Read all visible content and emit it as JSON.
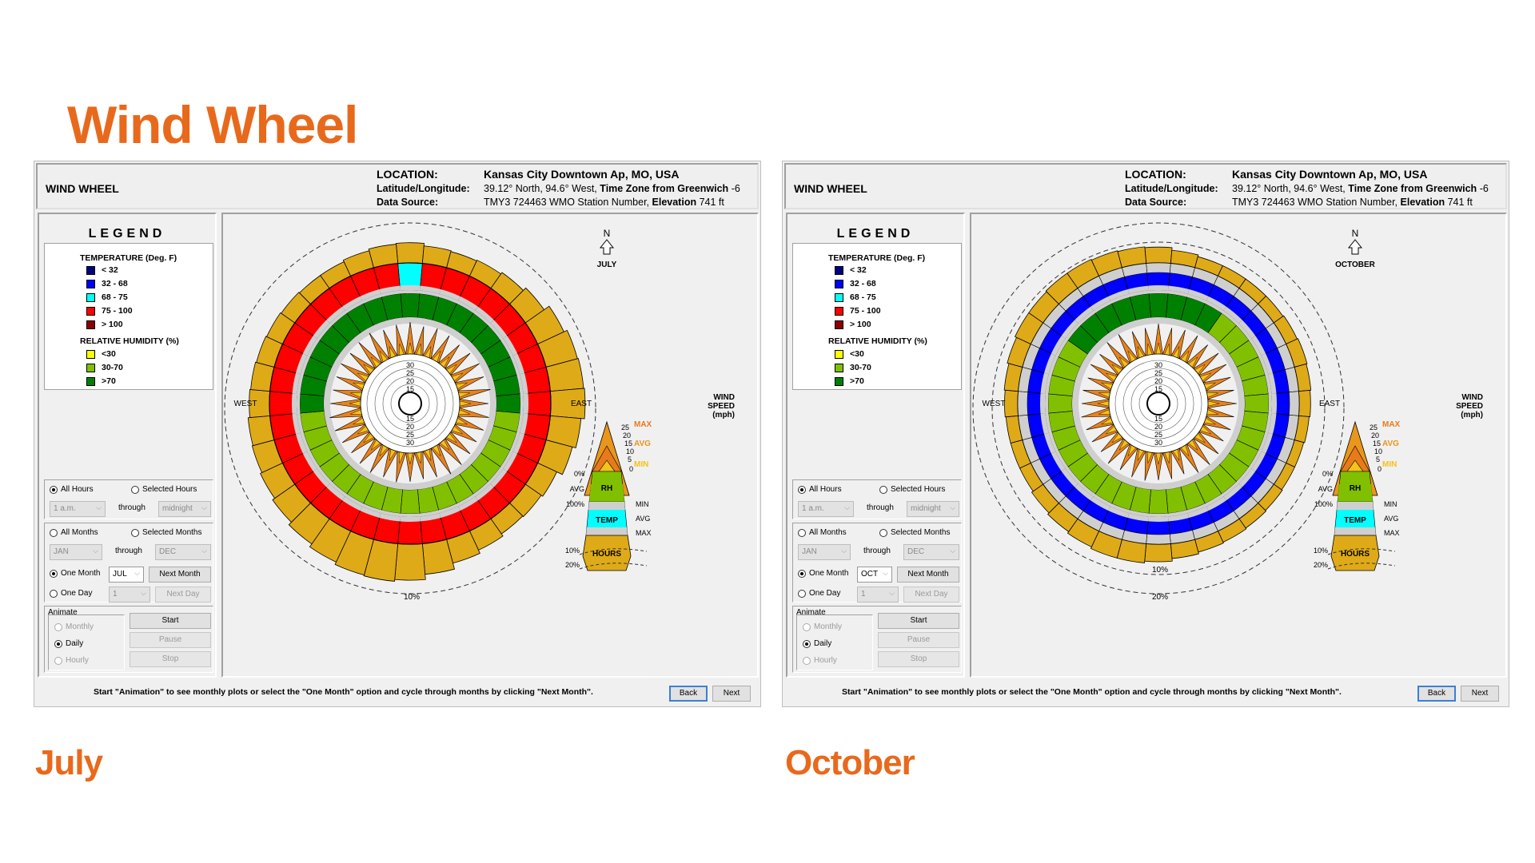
{
  "slide_title": "Wind Wheel",
  "windows": [
    {
      "caption": "July",
      "header": {
        "title": "WIND WHEEL",
        "location_key": "LOCATION:",
        "location_value": "Kansas City Downtown Ap, MO, USA",
        "latlon_key": "Latitude/Longitude:",
        "latlon_value": "39.12° North, 94.6° West,",
        "tz_label": "Time Zone from Greenwich",
        "tz_value": "-6",
        "source_key": "Data Source:",
        "source_value": "TMY3     724463 WMO Station Number,",
        "elev_label": "Elevation",
        "elev_value": "741 ft"
      },
      "month_label": "JULY",
      "selected_month": "JUL",
      "wheel_style": "july"
    },
    {
      "caption": "October",
      "header": {
        "title": "WIND WHEEL",
        "location_key": "LOCATION:",
        "location_value": "Kansas City Downtown Ap, MO, USA",
        "latlon_key": "Latitude/Longitude:",
        "latlon_value": "39.12° North, 94.6° West,",
        "tz_label": "Time Zone from Greenwich",
        "tz_value": "-6",
        "source_key": "Data Source:",
        "source_value": "TMY3     724463 WMO Station Number,",
        "elev_label": "Elevation",
        "elev_value": "741 ft"
      },
      "month_label": "OCTOBER",
      "selected_month": "OCT",
      "wheel_style": "october"
    }
  ],
  "legend": {
    "title": "LEGEND",
    "temp_heading": "TEMPERATURE (Deg. F)",
    "temp_items": [
      {
        "label": "< 32",
        "color": "#000080"
      },
      {
        "label": "32  -  68",
        "color": "#0000ff"
      },
      {
        "label": "68  -  75",
        "color": "#00ffff"
      },
      {
        "label": "75  -  100",
        "color": "#ff0000"
      },
      {
        "label": "> 100",
        "color": "#8b0000"
      }
    ],
    "rh_heading": "RELATIVE HUMIDITY (%)",
    "rh_items": [
      {
        "label": "<30",
        "color": "#ffff00"
      },
      {
        "label": "30-70",
        "color": "#80c000"
      },
      {
        "label": ">70",
        "color": "#008000"
      }
    ]
  },
  "controls": {
    "all_hours": "All Hours",
    "selected_hours": "Selected Hours",
    "hour_from": "1 a.m.",
    "through": "through",
    "hour_to": "midnight",
    "all_months": "All Months",
    "selected_months": "Selected Months",
    "month_from": "JAN",
    "month_to": "DEC",
    "one_month": "One Month",
    "next_month": "Next Month",
    "one_day": "One Day",
    "day_value": "1",
    "next_day": "Next Day",
    "animate": "Animate",
    "monthly": "Monthly",
    "daily": "Daily",
    "hourly": "Hourly",
    "start": "Start",
    "pause": "Pause",
    "stop": "Stop",
    "back": "Back",
    "next": "Next",
    "footer": "Start \"Animation\" to see monthly plots or select the \"One Month\" option and cycle through months by clicking \"Next Month\"."
  },
  "plot_labels": {
    "north": "N",
    "west": "WEST",
    "east": "EAST",
    "wind_speed": [
      "WIND",
      "SPEED",
      "(mph)"
    ],
    "ring_ticks": [
      "15",
      "20",
      "25",
      "30"
    ],
    "key_speeds": [
      "25",
      "20",
      "15",
      "10",
      "5",
      "0"
    ],
    "max": "MAX",
    "avg": "AVG",
    "min": "MIN",
    "rh": "RH",
    "temp": "TEMP",
    "hours": "HOURS",
    "pct0": "0%",
    "avg_l": "AVG",
    "pct100": "100%",
    "tmin": "MIN",
    "tavg": "AVG",
    "tmax": "MAX",
    "p10": "10%",
    "p20": "20%",
    "circle_10": "10%",
    "circle_20": "20%"
  },
  "colors": {
    "title_orange": "#e8691c",
    "hours_gold": "#dfaa18",
    "grey_band": "#cfcfcf",
    "wind_orange": "#e8821c",
    "max_orange": "#e87a1c",
    "avg_orange": "#e8961c",
    "min_gold": "#f2c318"
  }
}
